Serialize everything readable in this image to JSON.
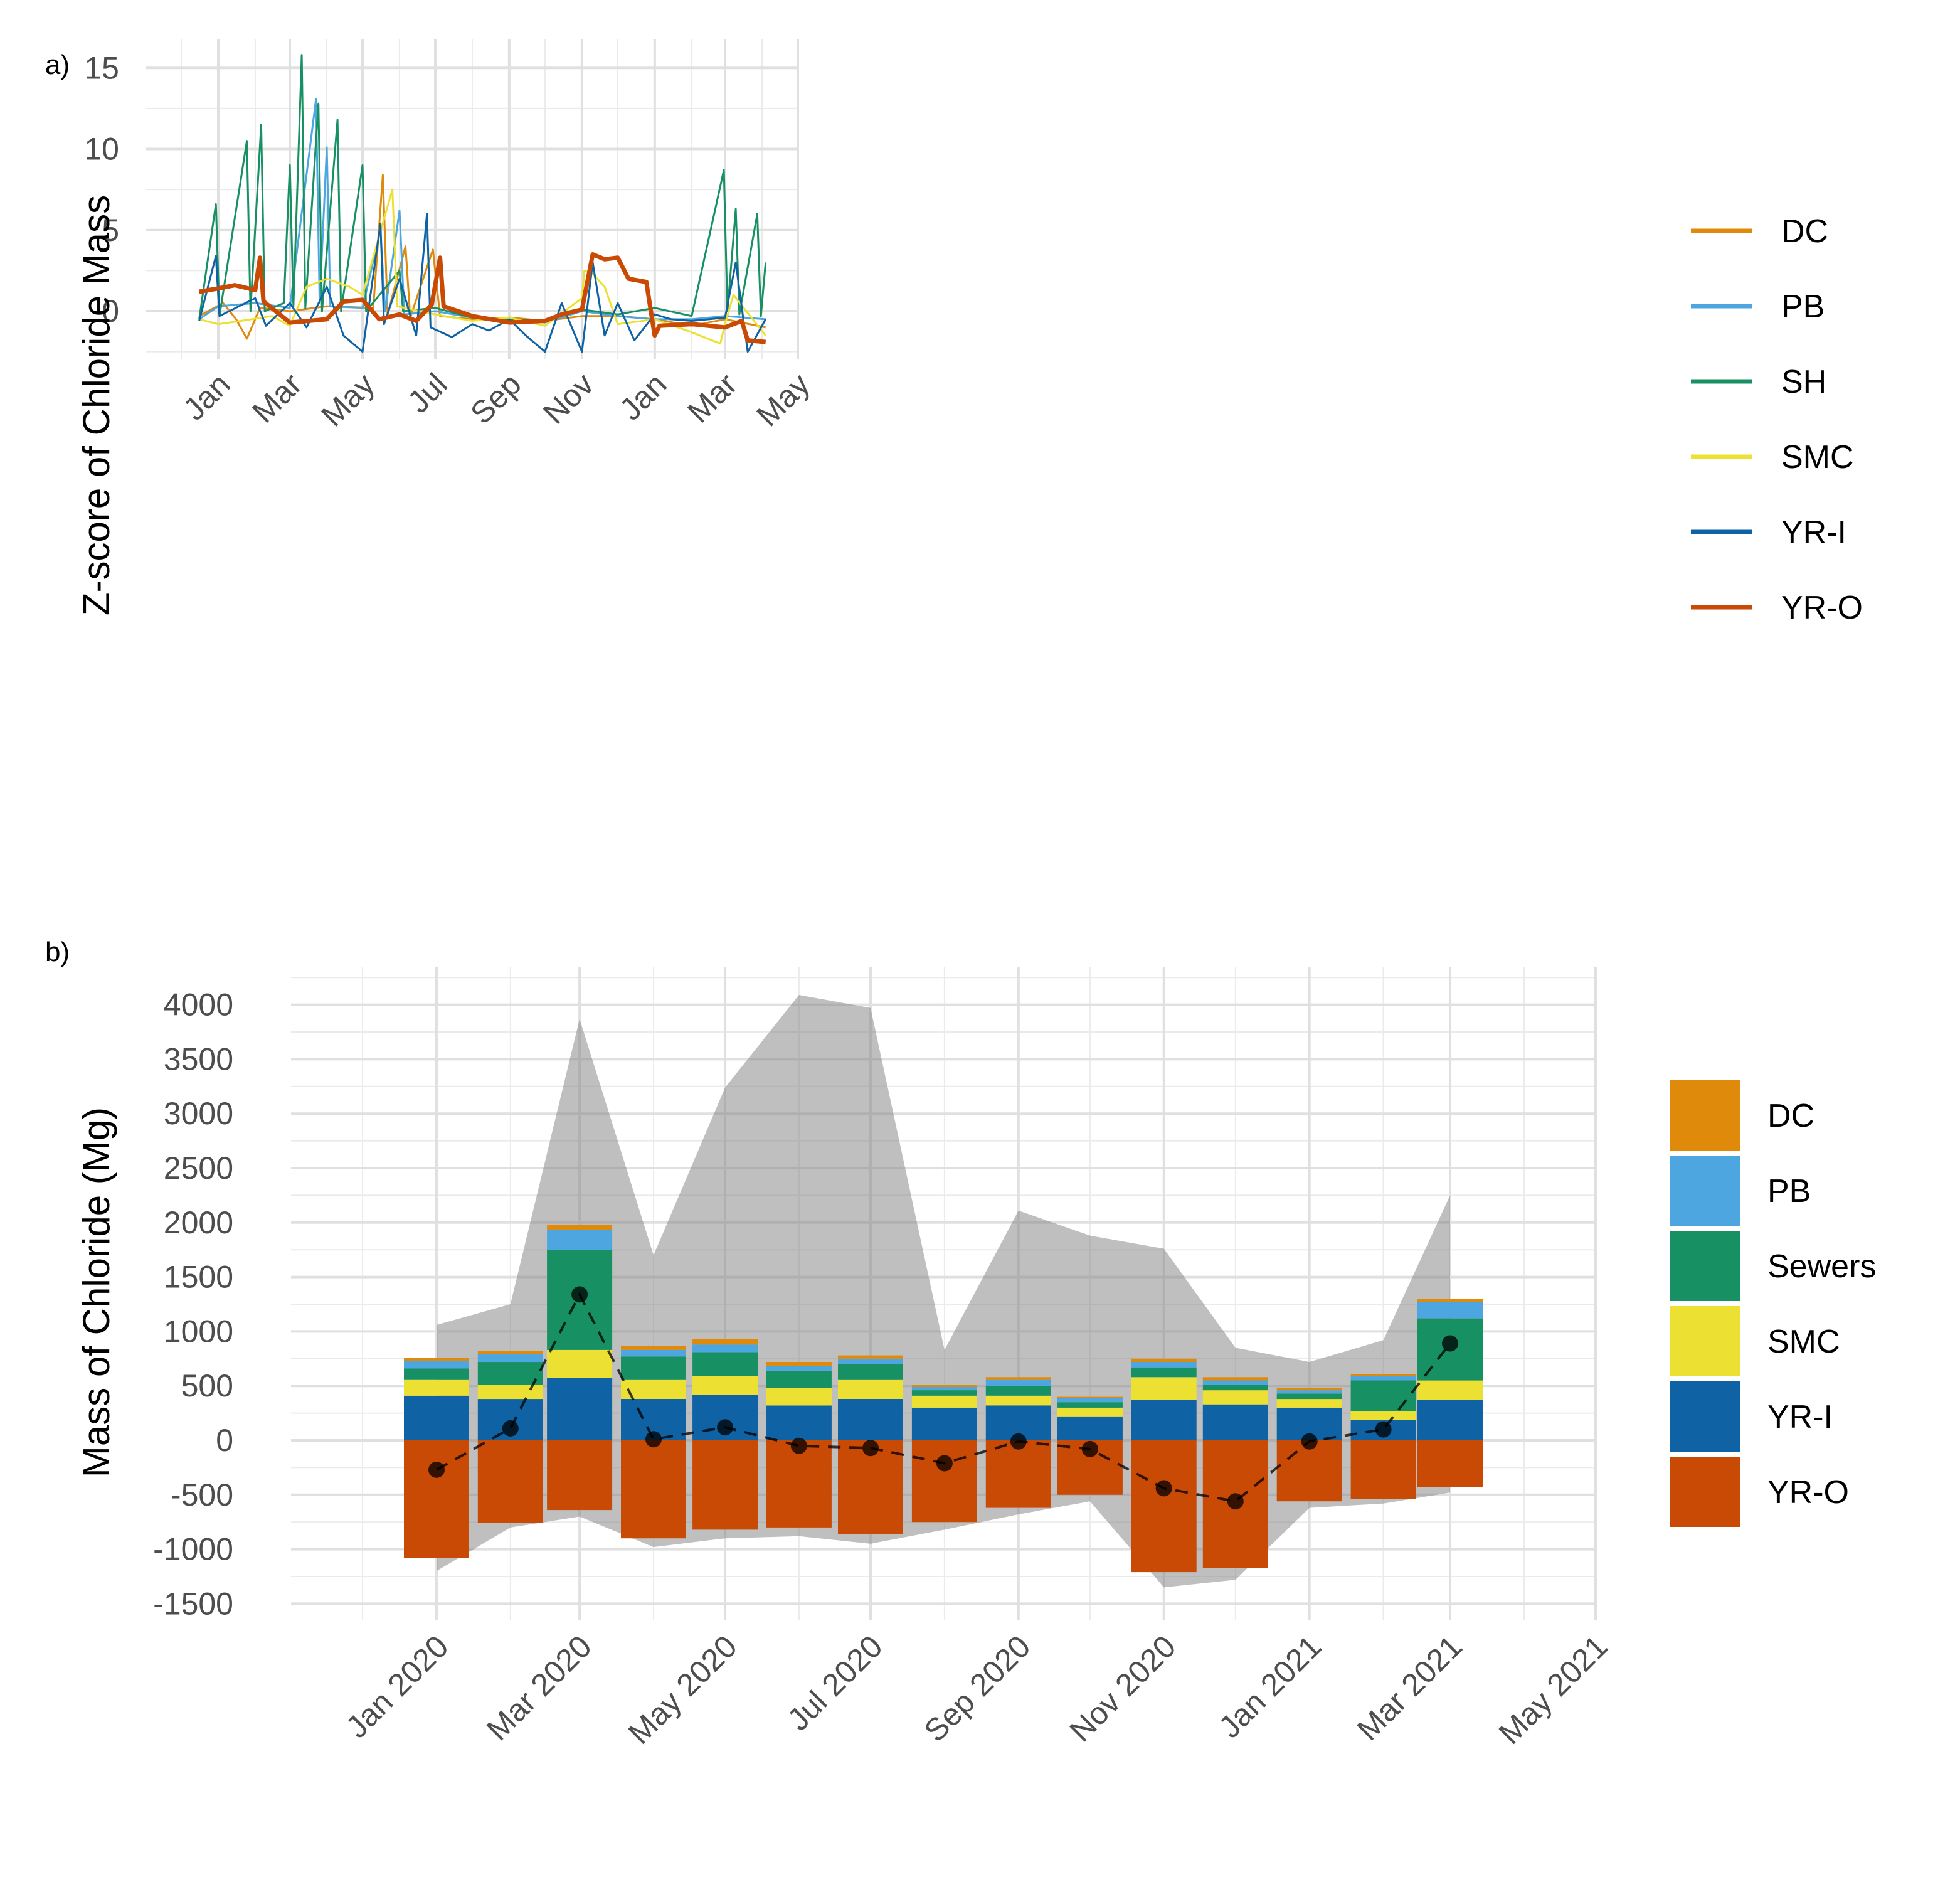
{
  "chart_data": [
    {
      "panel_label": "a)",
      "type": "line",
      "title": "",
      "xlabel": "",
      "ylabel": "Z-score of Chloride Mass",
      "xlim": [
        "2019-11-01",
        "2021-05-01"
      ],
      "ylim": [
        -2.5,
        16.5
      ],
      "x_ticks": [
        "2020-01-01",
        "2020-03-01",
        "2020-05-01",
        "2020-07-01",
        "2020-09-01",
        "2020-11-01",
        "2021-01-01",
        "2021-03-01",
        "2021-05-01"
      ],
      "x_tick_labels": [
        "Jan",
        "Mar",
        "May",
        "Jul",
        "Sep",
        "Nov",
        "Jan",
        "Mar",
        "May"
      ],
      "y_ticks": [
        0,
        5,
        10,
        15
      ],
      "grid": true,
      "legend_position": "right",
      "series": [
        {
          "name": "DC",
          "color": "#DF8A0A",
          "points": [
            [
              "2019-12-16",
              -0.3
            ],
            [
              "2020-01-05",
              0.5
            ],
            [
              "2020-01-16",
              -0.5
            ],
            [
              "2020-01-25",
              -1.7
            ],
            [
              "2020-02-05",
              0.2
            ],
            [
              "2020-03-01",
              0.0
            ],
            [
              "2020-04-01",
              0.3
            ],
            [
              "2020-05-10",
              0.2
            ],
            [
              "2020-05-18",
              8.4
            ],
            [
              "2020-05-22",
              -0.2
            ],
            [
              "2020-06-06",
              4.0
            ],
            [
              "2020-06-10",
              -0.4
            ],
            [
              "2020-06-29",
              3.8
            ],
            [
              "2020-07-05",
              -0.3
            ],
            [
              "2020-08-01",
              -0.5
            ],
            [
              "2020-09-02",
              -0.4
            ],
            [
              "2020-10-01",
              -0.6
            ],
            [
              "2020-11-01",
              -0.3
            ],
            [
              "2020-12-01",
              -0.3
            ],
            [
              "2021-01-01",
              -0.5
            ],
            [
              "2021-02-01",
              -0.9
            ],
            [
              "2021-03-01",
              -0.5
            ],
            [
              "2021-04-04",
              -1.0
            ]
          ]
        },
        {
          "name": "PB",
          "color": "#4DA6E0",
          "points": [
            [
              "2019-12-16",
              -0.5
            ],
            [
              "2020-01-01",
              0.3
            ],
            [
              "2020-02-01",
              0.5
            ],
            [
              "2020-03-01",
              0.2
            ],
            [
              "2020-03-23",
              13.1
            ],
            [
              "2020-03-26",
              0.5
            ],
            [
              "2020-04-01",
              10.1
            ],
            [
              "2020-04-04",
              0.3
            ],
            [
              "2020-05-01",
              0.2
            ],
            [
              "2020-05-16",
              5.0
            ],
            [
              "2020-05-20",
              0.0
            ],
            [
              "2020-06-01",
              6.2
            ],
            [
              "2020-06-05",
              -0.2
            ],
            [
              "2020-07-01",
              0.0
            ],
            [
              "2020-08-01",
              -0.4
            ],
            [
              "2020-09-01",
              -0.5
            ],
            [
              "2020-10-01",
              -0.7
            ],
            [
              "2020-11-01",
              0.0
            ],
            [
              "2020-12-01",
              -0.3
            ],
            [
              "2021-01-01",
              -0.5
            ],
            [
              "2021-02-01",
              -0.5
            ],
            [
              "2021-03-01",
              -0.3
            ],
            [
              "2021-04-04",
              -0.5
            ]
          ]
        },
        {
          "name": "SH",
          "color": "#179063",
          "points": [
            [
              "2019-12-16",
              -0.5
            ],
            [
              "2019-12-30",
              6.6
            ],
            [
              "2020-01-02",
              -0.3
            ],
            [
              "2020-01-25",
              10.5
            ],
            [
              "2020-01-28",
              0.0
            ],
            [
              "2020-02-06",
              11.5
            ],
            [
              "2020-02-09",
              0.0
            ],
            [
              "2020-02-25",
              0.5
            ],
            [
              "2020-03-01",
              9.0
            ],
            [
              "2020-03-04",
              0.3
            ],
            [
              "2020-03-11",
              15.8
            ],
            [
              "2020-03-14",
              0.2
            ],
            [
              "2020-03-25",
              12.8
            ],
            [
              "2020-03-28",
              0.0
            ],
            [
              "2020-04-10",
              11.8
            ],
            [
              "2020-04-13",
              0.0
            ],
            [
              "2020-05-01",
              9.0
            ],
            [
              "2020-05-04",
              0.0
            ],
            [
              "2020-06-01",
              2.5
            ],
            [
              "2020-06-04",
              0.0
            ],
            [
              "2020-07-01",
              0.2
            ],
            [
              "2020-08-01",
              -0.4
            ],
            [
              "2020-09-01",
              -0.5
            ],
            [
              "2020-10-01",
              -0.6
            ],
            [
              "2020-11-01",
              0.1
            ],
            [
              "2020-12-01",
              -0.2
            ],
            [
              "2021-01-01",
              0.2
            ],
            [
              "2021-02-01",
              -0.3
            ],
            [
              "2021-02-28",
              8.7
            ],
            [
              "2021-03-03",
              0.0
            ],
            [
              "2021-03-10",
              6.3
            ],
            [
              "2021-03-13",
              -0.2
            ],
            [
              "2021-03-28",
              6.0
            ],
            [
              "2021-03-31",
              -0.3
            ],
            [
              "2021-04-04",
              3.0
            ]
          ]
        },
        {
          "name": "SMC",
          "color": "#ECE133",
          "points": [
            [
              "2019-12-16",
              -0.5
            ],
            [
              "2020-01-01",
              -0.8
            ],
            [
              "2020-01-20",
              -0.6
            ],
            [
              "2020-02-15",
              -0.3
            ],
            [
              "2020-03-01",
              -0.9
            ],
            [
              "2020-03-15",
              1.5
            ],
            [
              "2020-04-01",
              2.0
            ],
            [
              "2020-04-20",
              1.5
            ],
            [
              "2020-05-01",
              1.0
            ],
            [
              "2020-05-26",
              7.5
            ],
            [
              "2020-05-30",
              0.3
            ],
            [
              "2020-07-01",
              -0.2
            ],
            [
              "2020-08-01",
              -0.6
            ],
            [
              "2020-09-01",
              -0.4
            ],
            [
              "2020-10-01",
              -0.9
            ],
            [
              "2020-11-01",
              0.8
            ],
            [
              "2020-11-03",
              2.5
            ],
            [
              "2020-11-10",
              2.3
            ],
            [
              "2020-11-20",
              1.5
            ],
            [
              "2020-12-01",
              -0.8
            ],
            [
              "2021-01-01",
              -0.5
            ],
            [
              "2021-02-01",
              -1.3
            ],
            [
              "2021-02-25",
              -2.0
            ],
            [
              "2021-03-01",
              -0.8
            ],
            [
              "2021-03-08",
              1.0
            ],
            [
              "2021-04-04",
              -1.5
            ]
          ]
        },
        {
          "name": "YR-I",
          "color": "#0F62A3",
          "points": [
            [
              "2019-12-16",
              -0.6
            ],
            [
              "2019-12-30",
              3.4
            ],
            [
              "2020-01-02",
              -0.3
            ],
            [
              "2020-02-01",
              0.8
            ],
            [
              "2020-02-10",
              -0.9
            ],
            [
              "2020-03-01",
              0.5
            ],
            [
              "2020-03-15",
              -1.0
            ],
            [
              "2020-04-01",
              1.5
            ],
            [
              "2020-04-15",
              -1.5
            ],
            [
              "2020-05-01",
              -2.5
            ],
            [
              "2020-05-16",
              5.4
            ],
            [
              "2020-05-19",
              -0.8
            ],
            [
              "2020-06-01",
              2.0
            ],
            [
              "2020-06-15",
              -1.5
            ],
            [
              "2020-06-24",
              6.0
            ],
            [
              "2020-06-27",
              -1.0
            ],
            [
              "2020-07-15",
              -1.6
            ],
            [
              "2020-08-01",
              -0.8
            ],
            [
              "2020-08-15",
              -1.2
            ],
            [
              "2020-09-01",
              -0.5
            ],
            [
              "2020-09-15",
              -1.5
            ],
            [
              "2020-10-01",
              -2.5
            ],
            [
              "2020-10-15",
              0.5
            ],
            [
              "2020-11-01",
              -2.5
            ],
            [
              "2020-11-10",
              3.0
            ],
            [
              "2020-11-20",
              -1.5
            ],
            [
              "2020-12-01",
              0.5
            ],
            [
              "2020-12-15",
              -1.8
            ],
            [
              "2021-01-01",
              -0.2
            ],
            [
              "2021-01-15",
              -0.5
            ],
            [
              "2021-02-01",
              -0.6
            ],
            [
              "2021-03-01",
              -0.4
            ],
            [
              "2021-03-10",
              3.0
            ],
            [
              "2021-03-20",
              -2.5
            ],
            [
              "2021-04-04",
              -0.5
            ]
          ]
        },
        {
          "name": "YR-O",
          "color": "#C94A05",
          "points": [
            [
              "2019-12-16",
              1.2
            ],
            [
              "2020-01-01",
              1.4
            ],
            [
              "2020-01-15",
              1.6
            ],
            [
              "2020-02-01",
              1.3
            ],
            [
              "2020-02-05",
              3.3
            ],
            [
              "2020-02-08",
              0.6
            ],
            [
              "2020-03-01",
              -0.7
            ],
            [
              "2020-04-01",
              -0.5
            ],
            [
              "2020-04-15",
              0.6
            ],
            [
              "2020-05-01",
              0.7
            ],
            [
              "2020-05-15",
              -0.5
            ],
            [
              "2020-06-01",
              -0.2
            ],
            [
              "2020-06-15",
              -0.6
            ],
            [
              "2020-06-28",
              0.4
            ],
            [
              "2020-07-05",
              3.3
            ],
            [
              "2020-07-08",
              0.3
            ],
            [
              "2020-08-01",
              -0.3
            ],
            [
              "2020-09-01",
              -0.7
            ],
            [
              "2020-10-01",
              -0.6
            ],
            [
              "2020-10-15",
              -0.2
            ],
            [
              "2020-11-01",
              0.1
            ],
            [
              "2020-11-10",
              3.5
            ],
            [
              "2020-11-20",
              3.2
            ],
            [
              "2020-12-01",
              3.3
            ],
            [
              "2020-12-10",
              2.0
            ],
            [
              "2020-12-25",
              1.8
            ],
            [
              "2021-01-01",
              -1.5
            ],
            [
              "2021-01-05",
              -0.9
            ],
            [
              "2021-02-01",
              -0.8
            ],
            [
              "2021-03-01",
              -1.0
            ],
            [
              "2021-03-15",
              -0.6
            ],
            [
              "2021-03-20",
              -1.8
            ],
            [
              "2021-04-04",
              -1.9
            ]
          ]
        }
      ]
    },
    {
      "panel_label": "b)",
      "type": "bar",
      "stacked": true,
      "title": "",
      "xlabel": "",
      "ylabel": "Mass of Chloride (Mg)",
      "xlim": [
        "2019-11-01",
        "2021-05-01"
      ],
      "ylim": [
        -1500,
        4300
      ],
      "x_ticks": [
        "2020-01-01",
        "2020-03-01",
        "2020-05-01",
        "2020-07-01",
        "2020-09-01",
        "2020-11-01",
        "2021-01-01",
        "2021-03-01",
        "2021-05-01"
      ],
      "x_tick_labels": [
        "Jan 2020",
        "Mar 2020",
        "May 2020",
        "Jul 2020",
        "Sep 2020",
        "Nov 2020",
        "Jan 2021",
        "Mar 2021",
        "May 2021"
      ],
      "y_ticks": [
        -1500,
        -1000,
        -500,
        0,
        500,
        1000,
        1500,
        2000,
        2500,
        3000,
        3500,
        4000
      ],
      "y_tick_labels": [
        "-1500",
        "-1000",
        "-500",
        "0",
        "500",
        "1000",
        "1500",
        "2000",
        "2500",
        "3000",
        "3500",
        "4000"
      ],
      "grid": true,
      "legend_position": "right",
      "categories": [
        "2020-01-01",
        "2020-02-01",
        "2020-03-01",
        "2020-04-01",
        "2020-05-01",
        "2020-06-01",
        "2020-07-01",
        "2020-08-01",
        "2020-09-01",
        "2020-10-01",
        "2020-11-01",
        "2020-12-01",
        "2021-01-01",
        "2021-02-01",
        "2021-03-01"
      ],
      "series": [
        {
          "name": "YR-I",
          "color": "#0F62A3",
          "values": [
            410,
            380,
            570,
            380,
            420,
            320,
            380,
            300,
            320,
            220,
            370,
            330,
            300,
            190,
            370
          ]
        },
        {
          "name": "SMC",
          "color": "#ECE133",
          "values": [
            150,
            130,
            260,
            180,
            170,
            160,
            180,
            110,
            90,
            80,
            210,
            130,
            80,
            80,
            180
          ]
        },
        {
          "name": "Sewers",
          "color": "#179063",
          "values": [
            100,
            210,
            920,
            210,
            220,
            160,
            140,
            50,
            90,
            50,
            90,
            50,
            50,
            280,
            570
          ]
        },
        {
          "name": "PB",
          "color": "#4DA6E0",
          "values": [
            70,
            70,
            180,
            60,
            70,
            40,
            50,
            30,
            60,
            40,
            50,
            40,
            30,
            40,
            150
          ]
        },
        {
          "name": "DC",
          "color": "#DF8A0A",
          "values": [
            30,
            30,
            50,
            40,
            50,
            40,
            30,
            20,
            20,
            10,
            30,
            30,
            20,
            20,
            30
          ]
        },
        {
          "name": "YR-O",
          "color": "#C94A05",
          "values": [
            -1080,
            -760,
            -640,
            -900,
            -820,
            -800,
            -860,
            -750,
            -620,
            -500,
            -1210,
            -1170,
            -560,
            -540,
            -430
          ]
        }
      ],
      "net": [
        -270,
        110,
        1340,
        10,
        120,
        -50,
        -70,
        -210,
        -10,
        -80,
        -440,
        -560,
        -10,
        100,
        890
      ],
      "uncertainty_upper": [
        1060,
        1250,
        3870,
        1700,
        3240,
        4090,
        3970,
        830,
        2110,
        1880,
        1760,
        850,
        720,
        920,
        2250
      ],
      "uncertainty_lower": [
        -1200,
        -800,
        -700,
        -980,
        -900,
        -880,
        -950,
        -820,
        -680,
        -560,
        -1350,
        -1280,
        -620,
        -580,
        -480
      ],
      "legend": [
        "DC",
        "PB",
        "Sewers",
        "SMC",
        "YR-I",
        "YR-O"
      ]
    }
  ]
}
